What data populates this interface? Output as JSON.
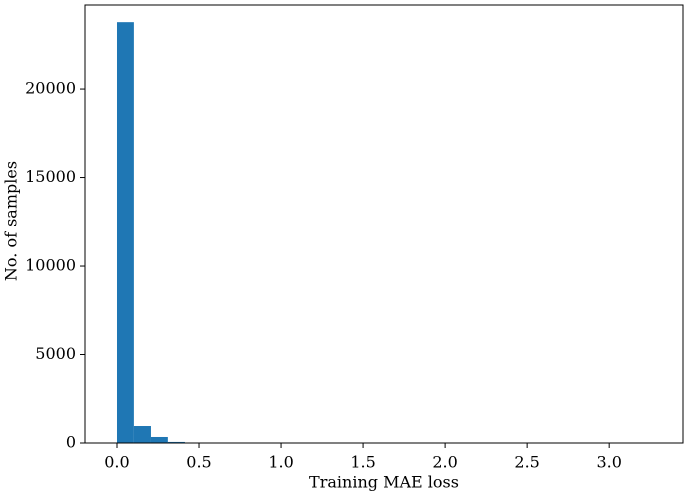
{
  "chart_data": {
    "type": "histogram",
    "xlabel": "Training MAE loss",
    "ylabel": "No. of samples",
    "bins": [
      0,
      0.103,
      0.207,
      0.31,
      0.414,
      0.517,
      0.621,
      0.724,
      0.827,
      0.931,
      1.034,
      1.138,
      1.241,
      1.345,
      1.448,
      1.551,
      1.655,
      1.758,
      1.862,
      1.965,
      2.069,
      2.172,
      2.275,
      2.379,
      2.482,
      2.586,
      2.689,
      2.793,
      2.896,
      2.999,
      3.103,
      3.206,
      3.31
    ],
    "counts": [
      23780,
      960,
      340,
      60,
      20,
      10,
      5,
      3,
      2,
      1,
      1,
      1,
      0,
      0,
      0,
      0,
      0,
      0,
      0,
      0,
      0,
      0,
      0,
      0,
      0,
      0,
      0,
      0,
      0,
      0,
      0,
      1
    ],
    "color": "#1f77b4",
    "xlim": [
      -0.195,
      3.45
    ],
    "ylim": [
      0,
      24750
    ],
    "xticks": [
      {
        "value": 0,
        "label": "0.0"
      },
      {
        "value": 0.5,
        "label": "0.5"
      },
      {
        "value": 1,
        "label": "1.0"
      },
      {
        "value": 1.5,
        "label": "1.5"
      },
      {
        "value": 2,
        "label": "2.0"
      },
      {
        "value": 2.5,
        "label": "2.5"
      },
      {
        "value": 3,
        "label": "3.0"
      }
    ],
    "yticks": [
      0,
      5000,
      10000,
      15000,
      20000
    ]
  }
}
